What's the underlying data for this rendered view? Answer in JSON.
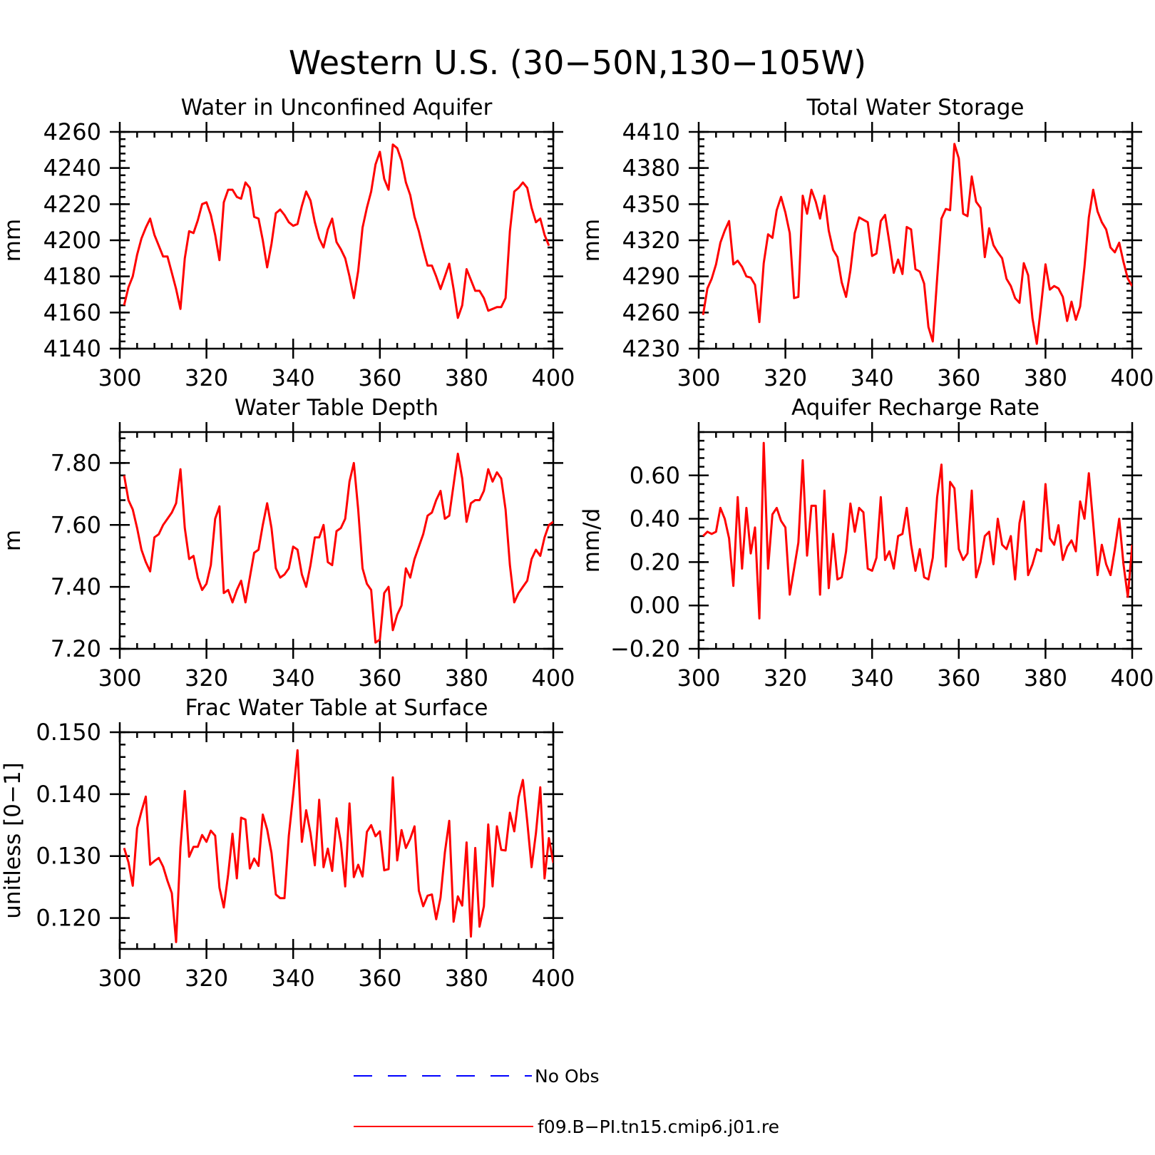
{
  "figure_title": "Western U.S. (30−50N,130−105W)",
  "legend": {
    "items": [
      {
        "label": "No Obs",
        "color": "#0000ff",
        "style": "dashed"
      },
      {
        "label": "f09.B−PI.tn15.cmip6.j01.re",
        "color": "#ff0000",
        "style": "solid"
      }
    ]
  },
  "chart_data": [
    {
      "type": "line",
      "title": "Water in Unconfined Aquifer",
      "ylabel": "mm",
      "xlim": [
        300,
        400
      ],
      "ylim": [
        4140,
        4260
      ],
      "xticks": [
        300,
        320,
        340,
        360,
        380,
        400
      ],
      "yticks": [
        4140,
        4160,
        4180,
        4200,
        4220,
        4240,
        4260
      ],
      "ytick_labels": [
        "4140",
        "4160",
        "4180",
        "4200",
        "4220",
        "4240",
        "4260"
      ],
      "x_start": 301,
      "x_step": 1,
      "series": [
        {
          "color": "#ff0000",
          "values": [
            4164,
            4174,
            4180,
            4192,
            4201,
            4207,
            4212,
            4203,
            4197,
            4191,
            4191,
            4182,
            4173,
            4162,
            4190,
            4205,
            4204,
            4211,
            4220,
            4221,
            4214,
            4203,
            4189,
            4221,
            4228,
            4228,
            4224,
            4223,
            4232,
            4229,
            4213,
            4212,
            4200,
            4185,
            4198,
            4215,
            4217,
            4214,
            4210,
            4208,
            4209,
            4219,
            4227,
            4222,
            4210,
            4201,
            4196,
            4206,
            4212,
            4199,
            4195,
            4190,
            4180,
            4168,
            4183,
            4207,
            4218,
            4227,
            4242,
            4249,
            4234,
            4228,
            4253,
            4251,
            4244,
            4232,
            4225,
            4213,
            4205,
            4195,
            4186,
            4186,
            4180,
            4173,
            4180,
            4187,
            4173,
            4157,
            4164,
            4184,
            4178,
            4172,
            4172,
            4168,
            4161,
            4162,
            4163,
            4163,
            4168,
            4205,
            4227,
            4229,
            4232,
            4229,
            4218,
            4210,
            4212,
            4203,
            4197
          ]
        }
      ]
    },
    {
      "type": "line",
      "title": "Total Water Storage",
      "ylabel": "mm",
      "xlim": [
        300,
        400
      ],
      "ylim": [
        4230,
        4410
      ],
      "xticks": [
        300,
        320,
        340,
        360,
        380,
        400
      ],
      "yticks": [
        4230,
        4260,
        4290,
        4320,
        4350,
        4380,
        4410
      ],
      "ytick_labels": [
        "4230",
        "4260",
        "4290",
        "4320",
        "4350",
        "4380",
        "4410"
      ],
      "x_start": 301,
      "x_step": 1,
      "series": [
        {
          "color": "#ff0000",
          "values": [
            4258,
            4280,
            4288,
            4300,
            4318,
            4328,
            4336,
            4300,
            4303,
            4298,
            4290,
            4289,
            4283,
            4252,
            4301,
            4325,
            4322,
            4345,
            4356,
            4343,
            4326,
            4272,
            4273,
            4357,
            4342,
            4362,
            4352,
            4338,
            4357,
            4328,
            4312,
            4306,
            4285,
            4273,
            4295,
            4326,
            4339,
            4337,
            4335,
            4307,
            4309,
            4336,
            4341,
            4318,
            4293,
            4304,
            4292,
            4331,
            4329,
            4296,
            4294,
            4284,
            4248,
            4236,
            4288,
            4338,
            4346,
            4345,
            4400,
            4388,
            4342,
            4340,
            4373,
            4352,
            4347,
            4306,
            4330,
            4316,
            4310,
            4305,
            4288,
            4282,
            4272,
            4268,
            4301,
            4291,
            4255,
            4234,
            4266,
            4300,
            4279,
            4282,
            4280,
            4273,
            4253,
            4269,
            4254,
            4265,
            4298,
            4339,
            4362,
            4344,
            4335,
            4329,
            4314,
            4310,
            4318,
            4302,
            4288,
            4282
          ]
        }
      ]
    },
    {
      "type": "line",
      "title": "Water Table Depth",
      "ylabel": "m",
      "xlim": [
        300,
        400
      ],
      "ylim": [
        7.2,
        7.9
      ],
      "xticks": [
        300,
        320,
        340,
        360,
        380,
        400
      ],
      "yticks": [
        7.2,
        7.4,
        7.6,
        7.8
      ],
      "ytick_labels": [
        "7.20",
        "7.40",
        "7.60",
        "7.80"
      ],
      "x_start": 301,
      "x_step": 1,
      "series": [
        {
          "color": "#ff0000",
          "values": [
            7.76,
            7.68,
            7.65,
            7.59,
            7.52,
            7.48,
            7.45,
            7.56,
            7.57,
            7.6,
            7.62,
            7.64,
            7.67,
            7.78,
            7.59,
            7.49,
            7.5,
            7.43,
            7.39,
            7.41,
            7.47,
            7.62,
            7.66,
            7.38,
            7.39,
            7.35,
            7.39,
            7.42,
            7.35,
            7.43,
            7.51,
            7.52,
            7.6,
            7.67,
            7.59,
            7.46,
            7.43,
            7.44,
            7.46,
            7.53,
            7.52,
            7.44,
            7.4,
            7.47,
            7.56,
            7.56,
            7.6,
            7.48,
            7.47,
            7.58,
            7.59,
            7.62,
            7.74,
            7.8,
            7.65,
            7.46,
            7.41,
            7.39,
            7.22,
            7.23,
            7.38,
            7.4,
            7.26,
            7.31,
            7.34,
            7.46,
            7.43,
            7.49,
            7.53,
            7.57,
            7.63,
            7.64,
            7.68,
            7.71,
            7.62,
            7.63,
            7.73,
            7.83,
            7.75,
            7.61,
            7.67,
            7.68,
            7.68,
            7.71,
            7.78,
            7.74,
            7.77,
            7.75,
            7.65,
            7.47,
            7.35,
            7.38,
            7.4,
            7.42,
            7.49,
            7.52,
            7.5,
            7.56,
            7.6,
            7.61
          ]
        }
      ]
    },
    {
      "type": "line",
      "title": "Aquifer Recharge Rate",
      "ylabel": "mm/d",
      "xlim": [
        300,
        400
      ],
      "ylim": [
        -0.2,
        0.8
      ],
      "xticks": [
        300,
        320,
        340,
        360,
        380,
        400
      ],
      "yticks": [
        -0.2,
        0.0,
        0.2,
        0.4,
        0.6
      ],
      "ytick_labels": [
        "−0.20",
        "0.00",
        "0.20",
        "0.40",
        "0.60"
      ],
      "x_start": 301,
      "x_step": 1,
      "series": [
        {
          "color": "#ff0000",
          "values": [
            0.32,
            0.34,
            0.33,
            0.34,
            0.45,
            0.4,
            0.31,
            0.09,
            0.5,
            0.17,
            0.45,
            0.24,
            0.36,
            -0.06,
            0.75,
            0.17,
            0.42,
            0.45,
            0.39,
            0.36,
            0.05,
            0.17,
            0.29,
            0.67,
            0.23,
            0.46,
            0.46,
            0.05,
            0.53,
            0.08,
            0.33,
            0.12,
            0.13,
            0.25,
            0.47,
            0.34,
            0.45,
            0.43,
            0.17,
            0.16,
            0.22,
            0.5,
            0.21,
            0.25,
            0.17,
            0.32,
            0.33,
            0.45,
            0.28,
            0.16,
            0.26,
            0.13,
            0.12,
            0.22,
            0.5,
            0.65,
            0.18,
            0.57,
            0.54,
            0.26,
            0.21,
            0.24,
            0.53,
            0.13,
            0.2,
            0.32,
            0.34,
            0.19,
            0.4,
            0.28,
            0.26,
            0.32,
            0.12,
            0.38,
            0.48,
            0.14,
            0.19,
            0.26,
            0.25,
            0.56,
            0.31,
            0.28,
            0.37,
            0.21,
            0.27,
            0.3,
            0.25,
            0.48,
            0.4,
            0.61,
            0.38,
            0.14,
            0.28,
            0.19,
            0.14,
            0.26,
            0.4,
            0.19,
            0.04,
            0.28
          ]
        }
      ]
    },
    {
      "type": "line",
      "title": "Frac Water Table at Surface",
      "ylabel": "unitless [0−1]",
      "xlim": [
        300,
        400
      ],
      "ylim": [
        0.115,
        0.15
      ],
      "xticks": [
        300,
        320,
        340,
        360,
        380,
        400
      ],
      "yticks": [
        0.12,
        0.13,
        0.14,
        0.15
      ],
      "ytick_labels": [
        "0.120",
        "0.130",
        "0.140",
        "0.150"
      ],
      "x_start": 301,
      "x_step": 1,
      "series": [
        {
          "color": "#ff0000",
          "values": [
            0.1313,
            0.129,
            0.1252,
            0.1345,
            0.1372,
            0.1396,
            0.1286,
            0.1292,
            0.1297,
            0.1283,
            0.126,
            0.124,
            0.1161,
            0.1314,
            0.1405,
            0.1299,
            0.1315,
            0.1315,
            0.1334,
            0.1323,
            0.1341,
            0.1333,
            0.1249,
            0.1217,
            0.127,
            0.1336,
            0.1264,
            0.1362,
            0.1359,
            0.128,
            0.1296,
            0.1284,
            0.1367,
            0.1343,
            0.1305,
            0.1238,
            0.1232,
            0.1232,
            0.1333,
            0.1399,
            0.1471,
            0.1323,
            0.1374,
            0.1337,
            0.1285,
            0.1391,
            0.1282,
            0.1312,
            0.1276,
            0.1361,
            0.1322,
            0.1251,
            0.1385,
            0.1266,
            0.1286,
            0.1267,
            0.1339,
            0.135,
            0.1332,
            0.134,
            0.1277,
            0.1279,
            0.1427,
            0.1293,
            0.1342,
            0.1313,
            0.1328,
            0.1348,
            0.1244,
            0.1219,
            0.1236,
            0.1238,
            0.1198,
            0.1233,
            0.1306,
            0.1357,
            0.1194,
            0.1235,
            0.122,
            0.1322,
            0.117,
            0.1313,
            0.1186,
            0.1219,
            0.1351,
            0.1251,
            0.1348,
            0.131,
            0.1309,
            0.137,
            0.134,
            0.1395,
            0.1423,
            0.1356,
            0.1282,
            0.1337,
            0.1411,
            0.1264,
            0.1329,
            0.1289
          ]
        }
      ]
    }
  ]
}
